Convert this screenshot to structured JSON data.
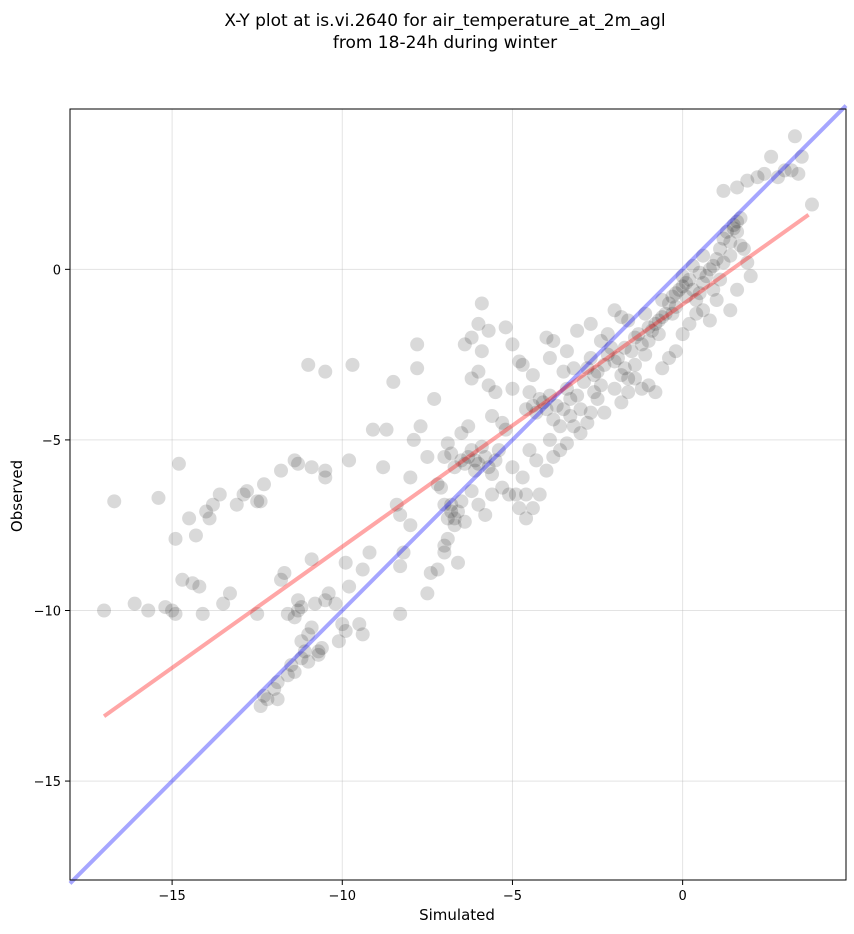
{
  "chart_data": {
    "type": "scatter",
    "title": [
      "X-Y plot at is.vi.2640 for air_temperature_at_2m_agl",
      "from 18-24h during winter"
    ],
    "xlabel": "Simulated",
    "ylabel": "Observed",
    "xlim": [
      -18,
      4.8
    ],
    "ylim": [
      -17.9,
      4.7
    ],
    "xticks": [
      -15,
      -10,
      -5,
      0
    ],
    "yticks": [
      -15,
      -10,
      -5,
      0
    ],
    "xtick_labels": [
      "−15",
      "−10",
      "−5",
      "0"
    ],
    "ytick_labels": [
      "−15",
      "−10",
      "−5",
      "0"
    ],
    "grid": true,
    "colors": {
      "points": "#000000",
      "one_to_one": "#0000ff",
      "fit": "#ff0000"
    },
    "one_to_one_line": {
      "from": [
        -18,
        -18
      ],
      "to": [
        4.8,
        4.8
      ]
    },
    "fit_line": {
      "from": [
        -17,
        -13.1
      ],
      "to": [
        3.7,
        1.6
      ]
    },
    "points": [
      [
        -17.0,
        -10.0
      ],
      [
        -16.7,
        -6.8
      ],
      [
        -16.1,
        -9.8
      ],
      [
        -15.7,
        -10.0
      ],
      [
        -15.4,
        -6.7
      ],
      [
        -15.2,
        -9.9
      ],
      [
        -15.0,
        -10.0
      ],
      [
        -14.9,
        -10.1
      ],
      [
        -14.9,
        -7.9
      ],
      [
        -14.8,
        -5.7
      ],
      [
        -14.7,
        -9.1
      ],
      [
        -14.5,
        -7.3
      ],
      [
        -14.4,
        -9.2
      ],
      [
        -14.2,
        -9.3
      ],
      [
        -14.3,
        -7.8
      ],
      [
        -14.1,
        -10.1
      ],
      [
        -14.0,
        -7.1
      ],
      [
        -13.9,
        -7.3
      ],
      [
        -13.8,
        -6.9
      ],
      [
        -13.6,
        -6.6
      ],
      [
        -13.5,
        -9.8
      ],
      [
        -13.3,
        -9.5
      ],
      [
        -13.1,
        -6.9
      ],
      [
        -12.9,
        -6.6
      ],
      [
        -12.8,
        -6.5
      ],
      [
        -12.5,
        -6.8
      ],
      [
        -12.4,
        -6.8
      ],
      [
        -12.3,
        -6.3
      ],
      [
        -12.5,
        -10.1
      ],
      [
        -12.3,
        -12.5
      ],
      [
        -12.4,
        -12.8
      ],
      [
        -12.2,
        -12.6
      ],
      [
        -12.0,
        -12.3
      ],
      [
        -11.9,
        -12.6
      ],
      [
        -11.9,
        -12.1
      ],
      [
        -11.8,
        -9.1
      ],
      [
        -11.7,
        -8.9
      ],
      [
        -11.8,
        -5.9
      ],
      [
        -11.6,
        -11.9
      ],
      [
        -11.5,
        -11.6
      ],
      [
        -11.4,
        -11.8
      ],
      [
        -11.6,
        -10.1
      ],
      [
        -11.4,
        -10.2
      ],
      [
        -11.3,
        -9.7
      ],
      [
        -11.3,
        -10.0
      ],
      [
        -11.2,
        -9.9
      ],
      [
        -11.2,
        -11.4
      ],
      [
        -11.1,
        -11.2
      ],
      [
        -11.2,
        -10.9
      ],
      [
        -11.0,
        -10.7
      ],
      [
        -11.0,
        -11.5
      ],
      [
        -10.9,
        -10.5
      ],
      [
        -10.8,
        -9.8
      ],
      [
        -10.7,
        -11.2
      ],
      [
        -10.7,
        -11.3
      ],
      [
        -10.5,
        -9.7
      ],
      [
        -10.6,
        -11.1
      ],
      [
        -10.4,
        -9.5
      ],
      [
        -10.9,
        -8.5
      ],
      [
        -11.3,
        -5.7
      ],
      [
        -11.4,
        -5.6
      ],
      [
        -10.9,
        -5.8
      ],
      [
        -10.5,
        -5.9
      ],
      [
        -10.5,
        -6.1
      ],
      [
        -11.0,
        -2.8
      ],
      [
        -10.5,
        -3.0
      ],
      [
        -10.2,
        -9.8
      ],
      [
        -10.0,
        -10.4
      ],
      [
        -10.1,
        -10.9
      ],
      [
        -9.9,
        -10.6
      ],
      [
        -9.8,
        -9.3
      ],
      [
        -9.9,
        -8.6
      ],
      [
        -9.8,
        -5.6
      ],
      [
        -9.7,
        -2.8
      ],
      [
        -9.5,
        -10.4
      ],
      [
        -9.4,
        -10.7
      ],
      [
        -9.4,
        -8.8
      ],
      [
        -9.2,
        -8.3
      ],
      [
        -9.1,
        -4.7
      ],
      [
        -8.8,
        -5.8
      ],
      [
        -8.7,
        -4.7
      ],
      [
        -8.5,
        -3.3
      ],
      [
        -8.4,
        -6.9
      ],
      [
        -8.3,
        -7.2
      ],
      [
        -8.3,
        -8.7
      ],
      [
        -8.3,
        -10.1
      ],
      [
        -8.2,
        -8.3
      ],
      [
        -8.0,
        -7.5
      ],
      [
        -8.0,
        -6.1
      ],
      [
        -7.9,
        -5.0
      ],
      [
        -7.8,
        -2.9
      ],
      [
        -7.8,
        -2.2
      ],
      [
        -7.7,
        -4.6
      ],
      [
        -7.5,
        -5.5
      ],
      [
        -7.4,
        -8.9
      ],
      [
        -7.5,
        -9.5
      ],
      [
        -7.2,
        -8.8
      ],
      [
        -7.3,
        -3.8
      ],
      [
        -7.2,
        -6.3
      ],
      [
        -7.1,
        -6.4
      ],
      [
        -7.0,
        -6.9
      ],
      [
        -7.0,
        -8.1
      ],
      [
        -7.0,
        -8.3
      ],
      [
        -6.9,
        -7.9
      ],
      [
        -6.9,
        -7.3
      ],
      [
        -6.8,
        -7.1
      ],
      [
        -6.8,
        -6.9
      ],
      [
        -6.7,
        -7.5
      ],
      [
        -6.6,
        -8.6
      ],
      [
        -7.0,
        -5.5
      ],
      [
        -6.9,
        -5.1
      ],
      [
        -6.8,
        -5.4
      ],
      [
        -6.7,
        -5.8
      ],
      [
        -6.5,
        -5.6
      ],
      [
        -6.4,
        -5.7
      ],
      [
        -6.3,
        -5.5
      ],
      [
        -6.2,
        -5.3
      ],
      [
        -6.1,
        -5.6
      ],
      [
        -6.0,
        -5.7
      ],
      [
        -6.1,
        -5.9
      ],
      [
        -5.9,
        -5.2
      ],
      [
        -5.8,
        -5.5
      ],
      [
        -5.7,
        -5.8
      ],
      [
        -5.6,
        -6.0
      ],
      [
        -5.5,
        -5.6
      ],
      [
        -6.5,
        -4.8
      ],
      [
        -6.3,
        -4.6
      ],
      [
        -6.2,
        -3.2
      ],
      [
        -6.0,
        -3.0
      ],
      [
        -5.9,
        -2.4
      ],
      [
        -5.7,
        -3.4
      ],
      [
        -5.6,
        -4.3
      ],
      [
        -5.5,
        -3.6
      ],
      [
        -5.3,
        -4.5
      ],
      [
        -5.2,
        -4.7
      ],
      [
        -6.4,
        -2.2
      ],
      [
        -6.2,
        -2.0
      ],
      [
        -6.0,
        -1.6
      ],
      [
        -5.9,
        -1.0
      ],
      [
        -5.7,
        -1.8
      ],
      [
        -5.2,
        -1.7
      ],
      [
        -5.0,
        -2.2
      ],
      [
        -4.8,
        -2.7
      ],
      [
        -4.7,
        -2.8
      ],
      [
        -4.5,
        -3.6
      ],
      [
        -4.4,
        -4.0
      ],
      [
        -4.3,
        -4.2
      ],
      [
        -4.2,
        -3.8
      ],
      [
        -4.1,
        -3.9
      ],
      [
        -4.0,
        -4.1
      ],
      [
        -3.9,
        -3.7
      ],
      [
        -3.8,
        -4.4
      ],
      [
        -3.7,
        -4.0
      ],
      [
        -3.6,
        -4.6
      ],
      [
        -3.5,
        -4.1
      ],
      [
        -3.4,
        -3.5
      ],
      [
        -3.3,
        -3.8
      ],
      [
        -3.2,
        -2.9
      ],
      [
        -3.1,
        -3.7
      ],
      [
        -3.0,
        -4.1
      ],
      [
        -2.9,
        -3.3
      ],
      [
        -2.8,
        -2.9
      ],
      [
        -2.7,
        -2.6
      ],
      [
        -2.6,
        -3.1
      ],
      [
        -2.5,
        -3.0
      ],
      [
        -2.4,
        -3.4
      ],
      [
        -2.3,
        -2.8
      ],
      [
        -2.2,
        -2.5
      ],
      [
        -2.1,
        -2.3
      ],
      [
        -2.0,
        -2.7
      ],
      [
        -1.9,
        -2.6
      ],
      [
        -1.8,
        -3.1
      ],
      [
        -1.7,
        -2.9
      ],
      [
        -1.6,
        -3.2
      ],
      [
        -1.5,
        -2.4
      ],
      [
        -1.4,
        -2.8
      ],
      [
        -1.3,
        -1.9
      ],
      [
        -1.2,
        -2.2
      ],
      [
        -1.1,
        -2.5
      ],
      [
        -1.0,
        -2.1
      ],
      [
        -0.9,
        -1.8
      ],
      [
        -0.8,
        -1.6
      ],
      [
        -0.7,
        -1.5
      ],
      [
        -0.6,
        -1.4
      ],
      [
        -0.5,
        -1.3
      ],
      [
        -0.4,
        -1.0
      ],
      [
        -0.3,
        -0.8
      ],
      [
        -0.2,
        -0.7
      ],
      [
        -0.1,
        -0.6
      ],
      [
        0.0,
        -0.5
      ],
      [
        0.1,
        -0.4
      ],
      [
        0.2,
        -0.3
      ],
      [
        0.3,
        -0.6
      ],
      [
        0.4,
        -0.9
      ],
      [
        0.5,
        -0.7
      ],
      [
        0.6,
        -0.4
      ],
      [
        0.7,
        -0.2
      ],
      [
        0.8,
        0.0
      ],
      [
        0.9,
        0.1
      ],
      [
        1.0,
        0.3
      ],
      [
        1.1,
        0.6
      ],
      [
        1.2,
        0.9
      ],
      [
        1.3,
        1.1
      ],
      [
        1.4,
        0.8
      ],
      [
        1.5,
        1.2
      ],
      [
        1.6,
        1.4
      ],
      [
        1.7,
        1.5
      ],
      [
        1.6,
        1.1
      ],
      [
        1.5,
        1.3
      ],
      [
        1.7,
        0.7
      ],
      [
        1.8,
        0.6
      ],
      [
        1.9,
        0.2
      ],
      [
        2.0,
        -0.2
      ],
      [
        1.2,
        2.3
      ],
      [
        1.6,
        2.4
      ],
      [
        1.9,
        2.6
      ],
      [
        2.2,
        2.7
      ],
      [
        2.4,
        2.8
      ],
      [
        2.6,
        3.3
      ],
      [
        2.8,
        2.7
      ],
      [
        3.0,
        2.9
      ],
      [
        3.2,
        2.9
      ],
      [
        3.3,
        3.9
      ],
      [
        3.4,
        2.8
      ],
      [
        3.5,
        3.3
      ],
      [
        3.8,
        1.9
      ],
      [
        -4.6,
        -6.6
      ],
      [
        -4.8,
        -7.0
      ],
      [
        -4.9,
        -6.6
      ],
      [
        -4.7,
        -6.1
      ],
      [
        -5.1,
        -6.6
      ],
      [
        -5.3,
        -6.4
      ],
      [
        -5.6,
        -6.6
      ],
      [
        -5.8,
        -7.2
      ],
      [
        -6.0,
        -6.9
      ],
      [
        -6.2,
        -6.5
      ],
      [
        -6.5,
        -6.8
      ],
      [
        -6.6,
        -7.1
      ],
      [
        -6.4,
        -7.4
      ],
      [
        -6.7,
        -7.3
      ],
      [
        -4.6,
        -7.3
      ],
      [
        -4.4,
        -7.0
      ],
      [
        -4.2,
        -6.6
      ],
      [
        -4.0,
        -5.9
      ],
      [
        -3.8,
        -5.5
      ],
      [
        -3.6,
        -5.3
      ],
      [
        -3.4,
        -5.1
      ],
      [
        -3.2,
        -4.6
      ],
      [
        -3.0,
        -4.8
      ],
      [
        -2.8,
        -4.5
      ],
      [
        -2.7,
        -4.2
      ],
      [
        -2.5,
        -3.8
      ],
      [
        -2.3,
        -4.2
      ],
      [
        -2.0,
        -3.5
      ],
      [
        -1.8,
        -3.9
      ],
      [
        -1.6,
        -3.6
      ],
      [
        -1.4,
        -3.2
      ],
      [
        -1.2,
        -3.5
      ],
      [
        -1.0,
        -3.4
      ],
      [
        -0.8,
        -3.6
      ],
      [
        -0.6,
        -2.9
      ],
      [
        -0.4,
        -2.6
      ],
      [
        -0.2,
        -2.4
      ],
      [
        0.0,
        -1.9
      ],
      [
        0.2,
        -1.6
      ],
      [
        0.4,
        -1.3
      ],
      [
        0.6,
        -1.2
      ],
      [
        0.8,
        -1.5
      ],
      [
        1.0,
        -0.9
      ],
      [
        1.4,
        -1.2
      ],
      [
        1.6,
        -0.6
      ],
      [
        -3.1,
        -1.8
      ],
      [
        -3.4,
        -2.4
      ],
      [
        -3.8,
        -2.1
      ],
      [
        -4.0,
        -2.0
      ],
      [
        -2.7,
        -1.6
      ],
      [
        -2.2,
        -1.9
      ],
      [
        -1.8,
        -1.4
      ],
      [
        -1.4,
        -2.0
      ],
      [
        -1.0,
        -1.7
      ],
      [
        -0.6,
        -0.9
      ],
      [
        -0.2,
        -1.1
      ],
      [
        0.0,
        -0.2
      ],
      [
        0.3,
        0.1
      ],
      [
        0.6,
        0.4
      ],
      [
        0.9,
        -0.6
      ],
      [
        1.1,
        -0.3
      ],
      [
        -5.0,
        -3.5
      ],
      [
        -4.4,
        -3.1
      ],
      [
        -3.9,
        -2.6
      ],
      [
        -2.4,
        -2.1
      ],
      [
        -1.6,
        -1.5
      ],
      [
        -1.1,
        -1.3
      ],
      [
        -0.7,
        -1.9
      ],
      [
        -0.3,
        -1.3
      ],
      [
        0.1,
        -0.8
      ],
      [
        0.5,
        -0.1
      ],
      [
        1.2,
        0.2
      ],
      [
        1.4,
        0.4
      ],
      [
        -2.0,
        -1.2
      ],
      [
        -1.7,
        -2.3
      ],
      [
        -2.6,
        -3.6
      ],
      [
        -3.3,
        -4.3
      ],
      [
        -3.5,
        -3.0
      ],
      [
        -4.6,
        -4.1
      ],
      [
        -5.4,
        -5.3
      ],
      [
        -5.0,
        -5.8
      ],
      [
        -4.5,
        -5.3
      ],
      [
        -4.3,
        -5.6
      ],
      [
        -3.9,
        -5.0
      ]
    ]
  }
}
